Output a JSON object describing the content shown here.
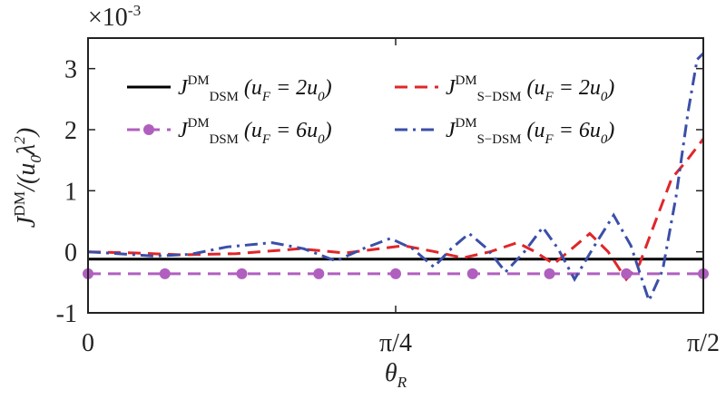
{
  "chart_data": {
    "type": "line",
    "scale_label": "×10^{-3}",
    "xlabel": "θ_R",
    "ylabel": "J^{DM}/(u_0λ^2)",
    "xlim": [
      0,
      1.5708
    ],
    "xticks": [
      0,
      {
        "value": 0.7854,
        "label": "π/4"
      },
      {
        "value": 1.5708,
        "label": "π/2"
      }
    ],
    "ylim": [
      -1,
      3.5
    ],
    "yticks": [
      -1,
      0,
      1,
      2,
      3
    ],
    "series": [
      {
        "name": "J^{DM}_{DSM} (u_F = 2u_0)",
        "color": "#000000",
        "linestyle": "solid",
        "x": [
          0,
          1.5708
        ],
        "values": [
          -0.12,
          -0.12
        ]
      },
      {
        "name": "J^{DM}_{S−DSM} (u_F = 2u_0)",
        "color": "#e0262a",
        "linestyle": "dashed",
        "x": [
          0,
          0.123,
          0.239,
          0.378,
          0.54,
          0.656,
          0.806,
          0.887,
          0.957,
          1.026,
          1.096,
          1.142,
          1.189,
          1.235,
          1.281,
          1.328,
          1.374,
          1.408,
          1.443,
          1.49,
          1.529,
          1.571
        ],
        "values": [
          0,
          -0.02,
          -0.05,
          -0.03,
          0.05,
          -0.02,
          0.1,
          0,
          -0.1,
          0,
          0.15,
          0,
          -0.2,
          0.05,
          0.3,
          0,
          -0.45,
          -0.2,
          0.4,
          1.2,
          1.5,
          1.85
        ]
      },
      {
        "name": "J^{DM}_{DSM} (u_F = 6u_0)",
        "color": "#b05fbf",
        "linestyle": "dashed",
        "marker": "circle",
        "x": [
          0,
          0.19635,
          0.3927,
          0.58905,
          0.7854,
          0.98175,
          1.1781,
          1.37445,
          1.5708
        ],
        "values": [
          -0.36,
          -0.36,
          -0.36,
          -0.36,
          -0.36,
          -0.36,
          -0.36,
          -0.36,
          -0.36
        ]
      },
      {
        "name": "J^{DM}_{S−DSM} (u_F = 6u_0)",
        "color": "#3b4fa8",
        "linestyle": "dashdot",
        "x": [
          0,
          0.076,
          0.169,
          0.262,
          0.355,
          0.47,
          0.551,
          0.633,
          0.702,
          0.772,
          0.829,
          0.883,
          0.927,
          0.973,
          1.019,
          1.066,
          1.114,
          1.161,
          1.2,
          1.242,
          1.293,
          1.342,
          1.386,
          1.432,
          1.467,
          1.501,
          1.532,
          1.555,
          1.571
        ],
        "values": [
          0,
          -0.03,
          -0.07,
          -0.04,
          0.08,
          0.15,
          0.05,
          -0.15,
          0.05,
          0.22,
          0.05,
          -0.25,
          0.05,
          0.3,
          0.05,
          -0.33,
          0,
          0.4,
          0.05,
          -0.45,
          0.1,
          0.6,
          0.1,
          -0.8,
          -0.3,
          0.9,
          2.3,
          3.15,
          3.25
        ]
      }
    ],
    "legend": "top-left-two-columns"
  }
}
